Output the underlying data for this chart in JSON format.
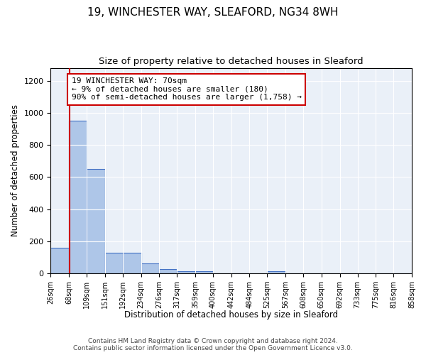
{
  "title1": "19, WINCHESTER WAY, SLEAFORD, NG34 8WH",
  "title2": "Size of property relative to detached houses in Sleaford",
  "xlabel": "Distribution of detached houses by size in Sleaford",
  "ylabel": "Number of detached properties",
  "bin_edges": [
    26,
    68,
    109,
    151,
    192,
    234,
    276,
    317,
    359,
    400,
    442,
    484,
    525,
    567,
    608,
    650,
    692,
    733,
    775,
    816,
    858
  ],
  "bar_heights": [
    160,
    950,
    650,
    130,
    130,
    60,
    25,
    12,
    12,
    0,
    0,
    0,
    12,
    0,
    0,
    0,
    0,
    0,
    0,
    0
  ],
  "bar_color": "#aec6e8",
  "bar_edge_color": "#4472c4",
  "property_size": 70,
  "property_line_color": "#cc0000",
  "annotation_text": "19 WINCHESTER WAY: 70sqm\n← 9% of detached houses are smaller (180)\n90% of semi-detached houses are larger (1,758) →",
  "annotation_box_color": "#ffffff",
  "annotation_box_edge_color": "#cc0000",
  "ylim": [
    0,
    1280
  ],
  "yticks": [
    0,
    200,
    400,
    600,
    800,
    1000,
    1200
  ],
  "background_color": "#eaf0f8",
  "footer_text": "Contains HM Land Registry data © Crown copyright and database right 2024.\nContains public sector information licensed under the Open Government Licence v3.0.",
  "title1_fontsize": 11,
  "title2_fontsize": 9.5,
  "xlabel_fontsize": 8.5,
  "ylabel_fontsize": 8.5,
  "annotation_fontsize": 8,
  "footer_fontsize": 6.5
}
